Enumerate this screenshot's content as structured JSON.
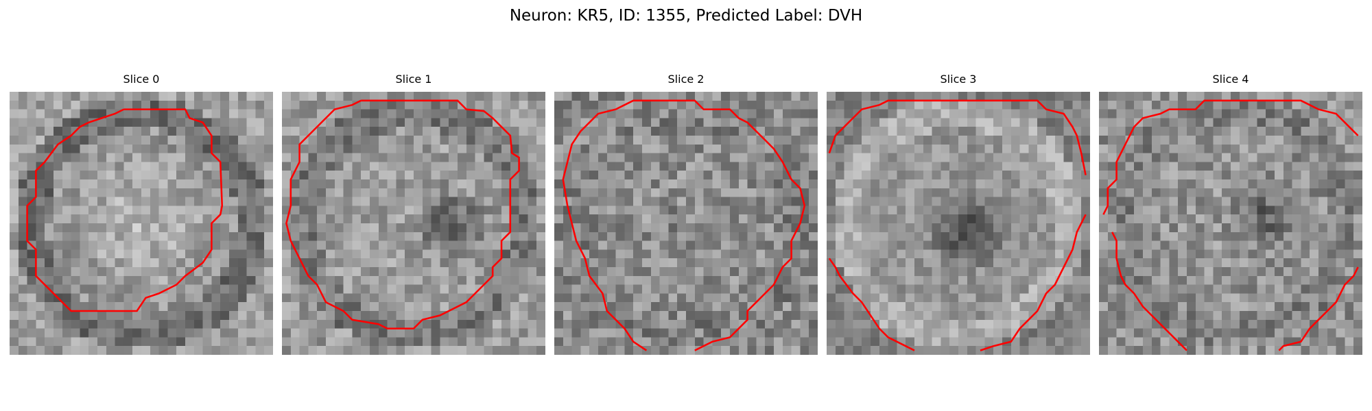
{
  "figure": {
    "title": "Neuron: KR5, ID: 1355, Predicted Label: DVH",
    "contour_color": "#ff0000"
  },
  "slices": [
    {
      "label": "Slice 0",
      "appearance": "bright-center"
    },
    {
      "label": "Slice 1",
      "appearance": "dark-nucleus"
    },
    {
      "label": "Slice 2",
      "appearance": "diffuse"
    },
    {
      "label": "Slice 3",
      "appearance": "dark-nucleus-ring"
    },
    {
      "label": "Slice 4",
      "appearance": "faint-nucleus"
    }
  ]
}
